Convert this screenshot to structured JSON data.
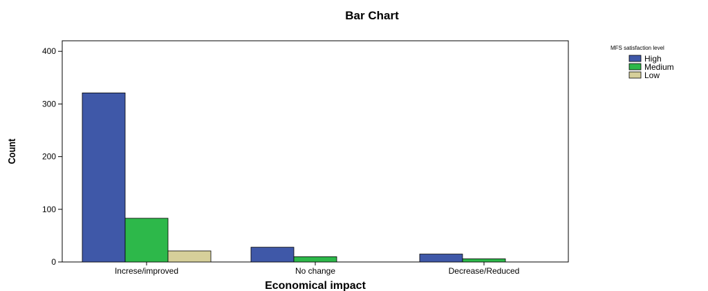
{
  "chart_data": {
    "type": "bar",
    "title": "Bar Chart",
    "xlabel": "Economical impact",
    "ylabel": "Count",
    "categories": [
      "Increse/improved",
      "No change",
      "Decrease/Reduced"
    ],
    "yticks": [
      0,
      100,
      200,
      300,
      400
    ],
    "ylim": [
      0,
      420
    ],
    "grid": false,
    "legend_title": "MFS satisfaction level",
    "legend_position": "top-right",
    "series": [
      {
        "name": "High",
        "color": "#3f58a8",
        "values": [
          321,
          28,
          15
        ]
      },
      {
        "name": "Medium",
        "color": "#2db84a",
        "values": [
          83,
          10,
          6
        ]
      },
      {
        "name": "Low",
        "color": "#d6cf9a",
        "values": [
          21,
          0,
          0
        ]
      }
    ]
  }
}
